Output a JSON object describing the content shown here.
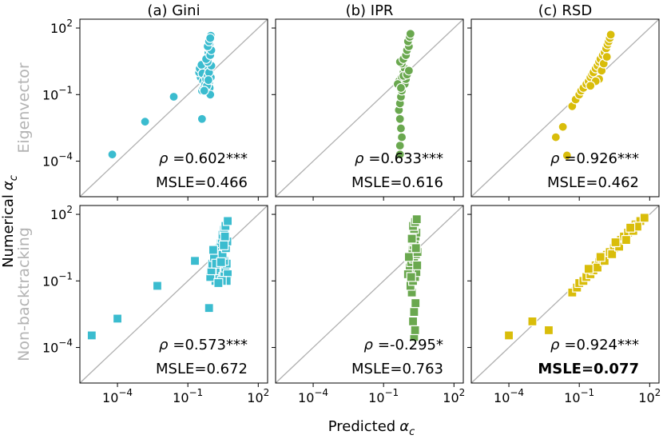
{
  "figure": {
    "xlabel_main": "Predicted",
    "ylabel_main": "Numerical",
    "symbol": "α",
    "subscript": "c",
    "row_labels": [
      "Eigenvector",
      "Non-backtracking"
    ],
    "col_titles": [
      "(a) Gini",
      "(b) IPR",
      "(c) RSD"
    ],
    "tick_base": "10",
    "tick_exponents": [
      "-4",
      "-1",
      "2"
    ],
    "rho_prefix": "ρ ="
  },
  "colors": {
    "gini": "#3bbccf",
    "ipr": "#6aa84f",
    "rsd": "#d9bd0a",
    "diagonal": "#b0b0b0",
    "row_label": "#b3b3b3"
  },
  "chart_data": [
    {
      "type": "scatter",
      "panel": "eigenvector-gini",
      "row": "Eigenvector",
      "title": "(a) Gini",
      "marker": "circle",
      "color": "#3bbccf",
      "xscale": "log",
      "yscale": "log",
      "xlim": [
        2.5e-06,
        250
      ],
      "ylim": [
        2.5e-06,
        250
      ],
      "rho": "0.602***",
      "msle": "MSLE=0.466",
      "msle_bold": false,
      "points": [
        [
          6e-05,
          0.0002
        ],
        [
          0.0015,
          0.006
        ],
        [
          0.025,
          0.08
        ],
        [
          0.4,
          0.008
        ],
        [
          0.35,
          0.6
        ],
        [
          0.45,
          0.4
        ],
        [
          0.5,
          0.8
        ],
        [
          0.55,
          1.2
        ],
        [
          0.6,
          2
        ],
        [
          0.65,
          3
        ],
        [
          0.7,
          5
        ],
        [
          0.75,
          8
        ],
        [
          0.8,
          12
        ],
        [
          0.85,
          20
        ],
        [
          0.9,
          30
        ],
        [
          0.95,
          45
        ],
        [
          0.4,
          0.15
        ],
        [
          0.45,
          0.2
        ],
        [
          0.5,
          0.25
        ],
        [
          0.55,
          0.3
        ],
        [
          0.3,
          1
        ],
        [
          0.32,
          1.5
        ],
        [
          0.38,
          2.2
        ],
        [
          0.42,
          0.9
        ],
        [
          0.6,
          0.5
        ],
        [
          0.7,
          0.7
        ],
        [
          0.8,
          0.35
        ],
        [
          0.85,
          0.2
        ],
        [
          0.9,
          0.1
        ],
        [
          0.95,
          0.6
        ],
        [
          0.8,
          1
        ],
        [
          1,
          2
        ],
        [
          0.7,
          3
        ],
        [
          0.6,
          4
        ],
        [
          0.9,
          6
        ],
        [
          1,
          10
        ],
        [
          0.7,
          15
        ],
        [
          0.8,
          25
        ],
        [
          0.9,
          35
        ],
        [
          0.65,
          0.25
        ],
        [
          0.5,
          0.15
        ],
        [
          0.75,
          0.45
        ]
      ]
    },
    {
      "type": "scatter",
      "panel": "eigenvector-ipr",
      "row": "Eigenvector",
      "title": "(b) IPR",
      "marker": "circle",
      "color": "#6aa84f",
      "xscale": "log",
      "yscale": "log",
      "xlim": [
        2.5e-06,
        250
      ],
      "ylim": [
        2.5e-06,
        250
      ],
      "rho": "0.633***",
      "msle": "MSLE=0.616",
      "msle_bold": false,
      "points": [
        [
          0.5,
          0.0002
        ],
        [
          0.5,
          0.0005
        ],
        [
          0.6,
          0.0012
        ],
        [
          0.55,
          0.003
        ],
        [
          0.5,
          0.008
        ],
        [
          0.45,
          0.02
        ],
        [
          0.5,
          0.04
        ],
        [
          0.55,
          0.08
        ],
        [
          0.6,
          0.15
        ],
        [
          0.5,
          0.25
        ],
        [
          0.45,
          0.4
        ],
        [
          0.6,
          0.6
        ],
        [
          0.7,
          1
        ],
        [
          0.8,
          1.5
        ],
        [
          0.6,
          2.5
        ],
        [
          0.5,
          3
        ],
        [
          0.7,
          4
        ],
        [
          0.9,
          6
        ],
        [
          1,
          10
        ],
        [
          1.2,
          15
        ],
        [
          1.1,
          25
        ],
        [
          1.3,
          40
        ],
        [
          1.4,
          55
        ],
        [
          0.8,
          0.3
        ],
        [
          0.9,
          0.5
        ],
        [
          0.7,
          0.7
        ],
        [
          1,
          0.8
        ],
        [
          1.2,
          1.2
        ],
        [
          0.4,
          0.3
        ],
        [
          0.55,
          0.2
        ]
      ]
    },
    {
      "type": "scatter",
      "panel": "eigenvector-rsd",
      "row": "Eigenvector",
      "title": "(c) RSD",
      "marker": "circle",
      "color": "#d9bd0a",
      "xscale": "log",
      "yscale": "log",
      "xlim": [
        2.5e-06,
        250
      ],
      "ylim": [
        2.5e-06,
        250
      ],
      "rho": "0.926***",
      "msle": "MSLE=0.462",
      "msle_bold": false,
      "points": [
        [
          0.03,
          0.00018
        ],
        [
          0.01,
          0.0012
        ],
        [
          0.02,
          0.0035
        ],
        [
          0.05,
          0.03
        ],
        [
          0.07,
          0.06
        ],
        [
          0.1,
          0.1
        ],
        [
          0.12,
          0.15
        ],
        [
          0.15,
          0.2
        ],
        [
          0.2,
          0.3
        ],
        [
          0.25,
          0.4
        ],
        [
          0.3,
          0.6
        ],
        [
          0.35,
          0.8
        ],
        [
          0.4,
          1
        ],
        [
          0.5,
          1.5
        ],
        [
          0.6,
          2
        ],
        [
          0.7,
          3
        ],
        [
          0.8,
          4
        ],
        [
          1,
          6
        ],
        [
          1.2,
          8
        ],
        [
          1.4,
          12
        ],
        [
          1.6,
          18
        ],
        [
          1.8,
          25
        ],
        [
          2,
          35
        ],
        [
          2.2,
          50
        ],
        [
          0.7,
          0.5
        ],
        [
          0.9,
          1.2
        ],
        [
          1.1,
          2.5
        ],
        [
          1.5,
          5
        ],
        [
          0.5,
          0.4
        ],
        [
          0.3,
          0.25
        ]
      ]
    },
    {
      "type": "scatter",
      "panel": "nonbacktracking-gini",
      "row": "Non-backtracking",
      "title": "(a) Gini",
      "marker": "square",
      "color": "#3bbccf",
      "xscale": "log",
      "yscale": "log",
      "xlim": [
        2.5e-06,
        250
      ],
      "ylim": [
        2.5e-06,
        250
      ],
      "rho": "0.573***",
      "msle": "MSLE=0.672",
      "msle_bold": false,
      "points": [
        [
          8e-06,
          0.00035
        ],
        [
          0.0001,
          0.002
        ],
        [
          0.005,
          0.06
        ],
        [
          0.2,
          0.8
        ],
        [
          0.8,
          0.006
        ],
        [
          1.5,
          0.5
        ],
        [
          1.8,
          1
        ],
        [
          2,
          2
        ],
        [
          2.2,
          3
        ],
        [
          2.5,
          5
        ],
        [
          2.8,
          8
        ],
        [
          3,
          12
        ],
        [
          3.5,
          20
        ],
        [
          4,
          30
        ],
        [
          5,
          50
        ],
        [
          1.5,
          0.1
        ],
        [
          1.8,
          0.15
        ],
        [
          2.2,
          0.2
        ],
        [
          2.5,
          0.3
        ],
        [
          0.9,
          0.15
        ],
        [
          1,
          0.3
        ],
        [
          1.1,
          0.6
        ],
        [
          1.3,
          1.2
        ],
        [
          1.2,
          2.5
        ],
        [
          3.2,
          0.15
        ],
        [
          3.6,
          0.25
        ],
        [
          4,
          0.4
        ],
        [
          4.5,
          0.6
        ],
        [
          3.5,
          0.8
        ],
        [
          3,
          1.5
        ],
        [
          4.2,
          3
        ],
        [
          4.8,
          6
        ],
        [
          3.8,
          10
        ],
        [
          5,
          0.2
        ],
        [
          4.5,
          0.1
        ],
        [
          2.8,
          0.1
        ],
        [
          2,
          0.08
        ],
        [
          1.6,
          0.6
        ],
        [
          2.6,
          0.7
        ],
        [
          3.4,
          4
        ]
      ]
    },
    {
      "type": "scatter",
      "panel": "nonbacktracking-ipr",
      "row": "Non-backtracking",
      "title": "(b) IPR",
      "marker": "square",
      "color": "#6aa84f",
      "xscale": "log",
      "yscale": "log",
      "xlim": [
        2.5e-06,
        250
      ],
      "ylim": [
        2.5e-06,
        250
      ],
      "rho": "-0.295*",
      "msle": "MSLE=0.763",
      "msle_bold": false,
      "points": [
        [
          2,
          0.0003
        ],
        [
          2.2,
          0.0006
        ],
        [
          1.8,
          0.0015
        ],
        [
          2,
          0.004
        ],
        [
          2.3,
          0.01
        ],
        [
          1.6,
          0.03
        ],
        [
          1.4,
          0.06
        ],
        [
          1.8,
          0.1
        ],
        [
          2.2,
          0.15
        ],
        [
          2.5,
          0.25
        ],
        [
          1.3,
          0.4
        ],
        [
          1.5,
          0.7
        ],
        [
          2,
          1
        ],
        [
          2.4,
          1.6
        ],
        [
          1.7,
          2.5
        ],
        [
          1.9,
          4
        ],
        [
          2.1,
          6
        ],
        [
          2.3,
          10
        ],
        [
          2.5,
          15
        ],
        [
          2,
          22
        ],
        [
          1.8,
          30
        ],
        [
          2.2,
          45
        ],
        [
          2.6,
          60
        ],
        [
          1.2,
          1.2
        ],
        [
          1.1,
          0.2
        ],
        [
          2.7,
          0.5
        ],
        [
          2.8,
          2
        ],
        [
          1.6,
          8
        ],
        [
          2.4,
          3
        ],
        [
          1.5,
          0.15
        ]
      ]
    },
    {
      "type": "scatter",
      "panel": "nonbacktracking-rsd",
      "row": "Non-backtracking",
      "title": "(c) RSD",
      "marker": "square",
      "color": "#d9bd0a",
      "xscale": "log",
      "yscale": "log",
      "xlim": [
        2.5e-06,
        250
      ],
      "ylim": [
        2.5e-06,
        250
      ],
      "rho": "0.924***",
      "msle": "MSLE=0.077",
      "msle_bold": true,
      "points": [
        [
          0.0001,
          0.00035
        ],
        [
          0.001,
          0.0015
        ],
        [
          0.005,
          0.0006
        ],
        [
          0.05,
          0.03
        ],
        [
          0.08,
          0.05
        ],
        [
          0.1,
          0.08
        ],
        [
          0.15,
          0.1
        ],
        [
          0.2,
          0.15
        ],
        [
          0.3,
          0.2
        ],
        [
          0.4,
          0.3
        ],
        [
          0.5,
          0.5
        ],
        [
          0.7,
          0.7
        ],
        [
          1,
          1
        ],
        [
          1.5,
          1.5
        ],
        [
          2,
          2
        ],
        [
          3,
          3
        ],
        [
          4,
          5
        ],
        [
          6,
          7
        ],
        [
          8,
          10
        ],
        [
          12,
          15
        ],
        [
          18,
          25
        ],
        [
          25,
          35
        ],
        [
          40,
          50
        ],
        [
          60,
          70
        ],
        [
          0.6,
          0.4
        ],
        [
          1.2,
          0.8
        ],
        [
          2.5,
          1.6
        ],
        [
          5,
          3.5
        ],
        [
          10,
          7
        ],
        [
          20,
          18
        ],
        [
          30,
          28
        ],
        [
          0.25,
          0.35
        ],
        [
          0.8,
          1.2
        ],
        [
          3.5,
          5.5
        ],
        [
          15,
          25
        ]
      ]
    }
  ]
}
